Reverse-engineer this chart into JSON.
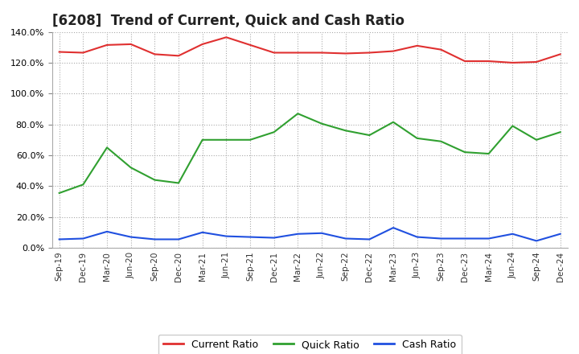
{
  "title": "[6208]  Trend of Current, Quick and Cash Ratio",
  "labels": [
    "Sep-19",
    "Dec-19",
    "Mar-20",
    "Jun-20",
    "Sep-20",
    "Dec-20",
    "Mar-21",
    "Jun-21",
    "Sep-21",
    "Dec-21",
    "Mar-22",
    "Jun-22",
    "Sep-22",
    "Dec-22",
    "Mar-23",
    "Jun-23",
    "Sep-23",
    "Dec-23",
    "Mar-24",
    "Jun-24",
    "Sep-24",
    "Dec-24"
  ],
  "current_ratio": [
    127.0,
    126.5,
    131.5,
    132.0,
    125.5,
    124.5,
    132.0,
    136.5,
    131.5,
    126.5,
    126.5,
    126.5,
    126.0,
    126.5,
    127.5,
    131.0,
    128.5,
    121.0,
    121.0,
    120.0,
    120.5,
    125.5
  ],
  "quick_ratio": [
    35.5,
    41.0,
    65.0,
    52.0,
    44.0,
    42.0,
    70.0,
    70.0,
    70.0,
    75.0,
    87.0,
    80.5,
    76.0,
    73.0,
    81.5,
    71.0,
    69.0,
    62.0,
    61.0,
    79.0,
    70.0,
    75.0
  ],
  "cash_ratio": [
    5.5,
    6.0,
    10.5,
    7.0,
    5.5,
    5.5,
    10.0,
    7.5,
    7.0,
    6.5,
    9.0,
    9.5,
    6.0,
    5.5,
    13.0,
    7.0,
    6.0,
    6.0,
    6.0,
    9.0,
    4.5,
    9.0
  ],
  "current_color": "#e03030",
  "quick_color": "#30a030",
  "cash_color": "#2050e0",
  "ylim": [
    0,
    140
  ],
  "yticks": [
    0,
    20,
    40,
    60,
    80,
    100,
    120,
    140
  ],
  "background_color": "#ffffff",
  "grid_color": "#aaaaaa",
  "title_fontsize": 12,
  "legend_labels": [
    "Current Ratio",
    "Quick Ratio",
    "Cash Ratio"
  ]
}
